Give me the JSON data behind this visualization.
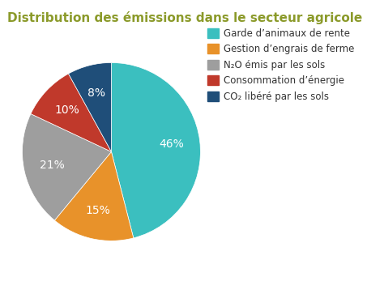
{
  "title": "Distribution des émissions dans le secteur agricole",
  "title_color": "#8B9A2A",
  "background_color": "#ffffff",
  "slices": [
    46,
    15,
    21,
    10,
    8
  ],
  "colors": [
    "#3BBFBF",
    "#E8922A",
    "#9E9E9E",
    "#C0392B",
    "#1F4E79"
  ],
  "labels": [
    "46%",
    "15%",
    "21%",
    "10%",
    "8%"
  ],
  "legend_labels": [
    "Garde d’animaux de rente",
    "Gestion d’engrais de ferme",
    "N₂O émis par les sols",
    "Consommation d’énergie",
    "CO₂ libéré par les sols"
  ],
  "startangle": 90,
  "label_fontsize": 10,
  "legend_fontsize": 8.5,
  "title_fontsize": 11
}
